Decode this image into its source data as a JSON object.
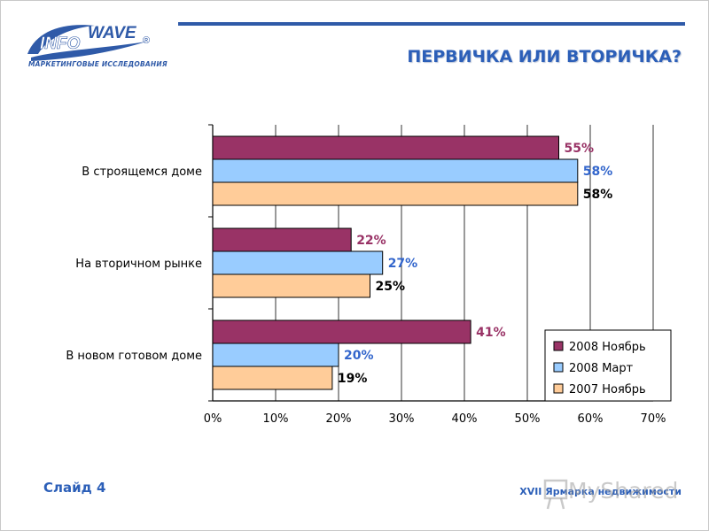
{
  "header": {
    "logo_info": "INFO",
    "logo_wave": "WAVE",
    "logo_reg": "®",
    "logo_subtitle": "МАРКЕТИНГОВЫЕ ИССЛЕДОВАНИЯ",
    "title": "ПЕРВИЧКА ИЛИ ВТОРИЧКА?"
  },
  "footer": {
    "slide_label": "Слайд 4",
    "event_label": "XVII Ярмарка недвижимости",
    "watermark": "MyShared"
  },
  "colors": {
    "accent": "#2c5fb8",
    "series_nov_2008": "#993366",
    "series_mar_2008": "#99ccff",
    "series_nov_2007": "#ffcc99"
  },
  "chart_data": {
    "type": "bar",
    "orientation": "horizontal",
    "categories": [
      "В строящемся доме",
      "На вторичном рынке",
      "В новом готовом доме"
    ],
    "series": [
      {
        "name": "2008 Ноябрь",
        "values": [
          55,
          22,
          41
        ],
        "labels": [
          "55%",
          "22%",
          "41%"
        ],
        "color": "#993366",
        "label_color": "#993366"
      },
      {
        "name": "2008 Март",
        "values": [
          58,
          27,
          20
        ],
        "labels": [
          "58%",
          "27%",
          "20%"
        ],
        "color": "#99ccff",
        "label_color": "#3366cc"
      },
      {
        "name": "2007 Ноябрь",
        "values": [
          58,
          25,
          19
        ],
        "labels": [
          "58%",
          "25%",
          "19%"
        ],
        "color": "#ffcc99",
        "label_color": "#000000"
      }
    ],
    "xlim": [
      0,
      70
    ],
    "x_ticks": [
      "0%",
      "10%",
      "20%",
      "30%",
      "40%",
      "50%",
      "60%",
      "70%"
    ],
    "grid": true,
    "legend_placement": "bottom-right"
  }
}
